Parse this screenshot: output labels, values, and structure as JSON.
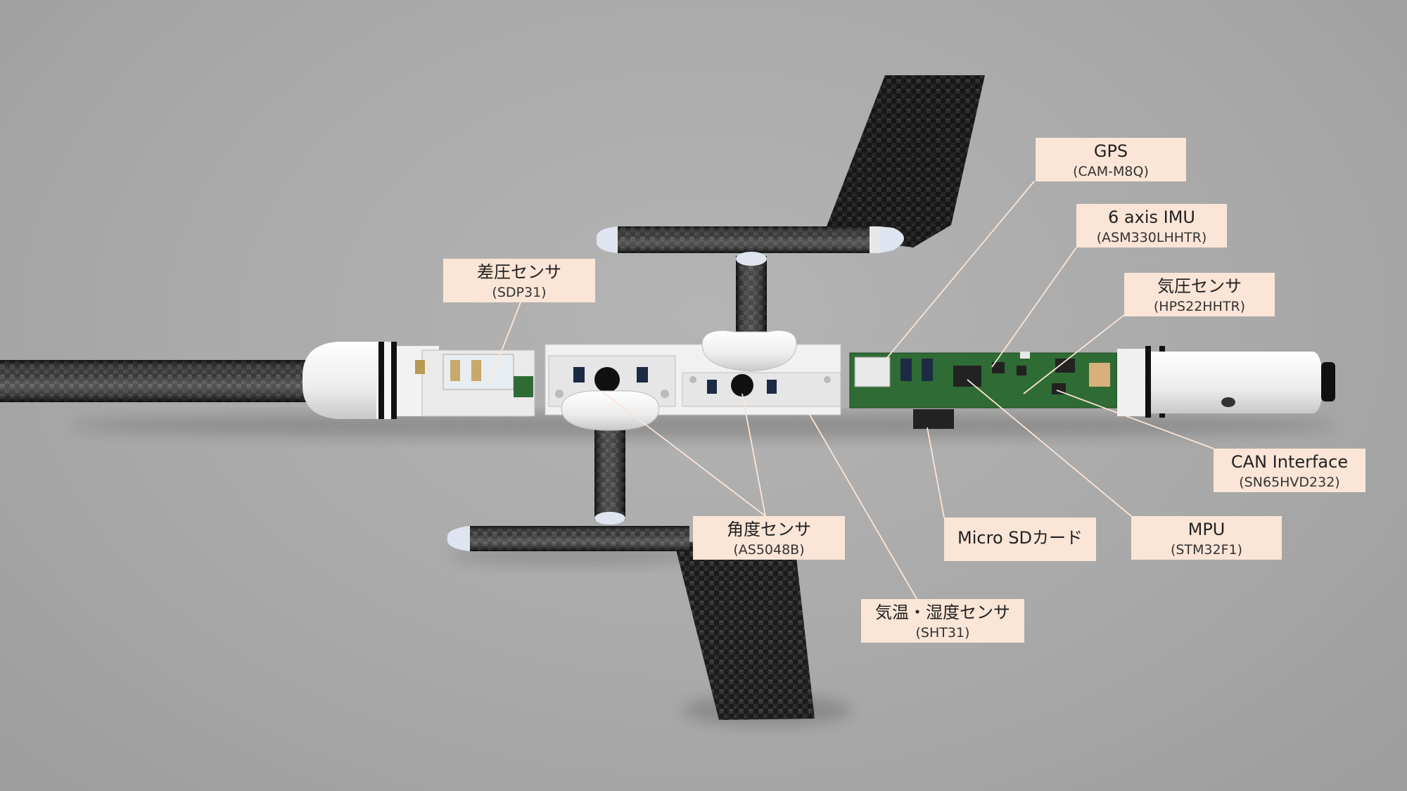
{
  "colors": {
    "background": "#aaaaaa",
    "callout_fill": "#fbe5d6",
    "leader_line": "#fbe5d6",
    "carbon": "#1e1e1e",
    "housing": "#f2f2f2",
    "pcb": "#2f6b34"
  },
  "callouts": {
    "gps": {
      "name": "GPS",
      "part": "(CAM-M8Q)"
    },
    "imu": {
      "name": "6 axis IMU",
      "part": "(ASM330LHHTR)"
    },
    "baro": {
      "name": "気圧センサ",
      "part": "(HPS22HHTR)"
    },
    "diffp": {
      "name": "差圧センサ",
      "part": "(SDP31)"
    },
    "can": {
      "name": "CAN Interface",
      "part": "(SN65HVD232)"
    },
    "sd": {
      "name": "Micro SDカード",
      "part": ""
    },
    "mpu": {
      "name": "MPU",
      "part": "(STM32F1)"
    },
    "angle": {
      "name": "角度センサ",
      "part": "(AS5048B)"
    },
    "temp": {
      "name": "気温・湿度センサ",
      "part": "(SHT31)"
    }
  }
}
